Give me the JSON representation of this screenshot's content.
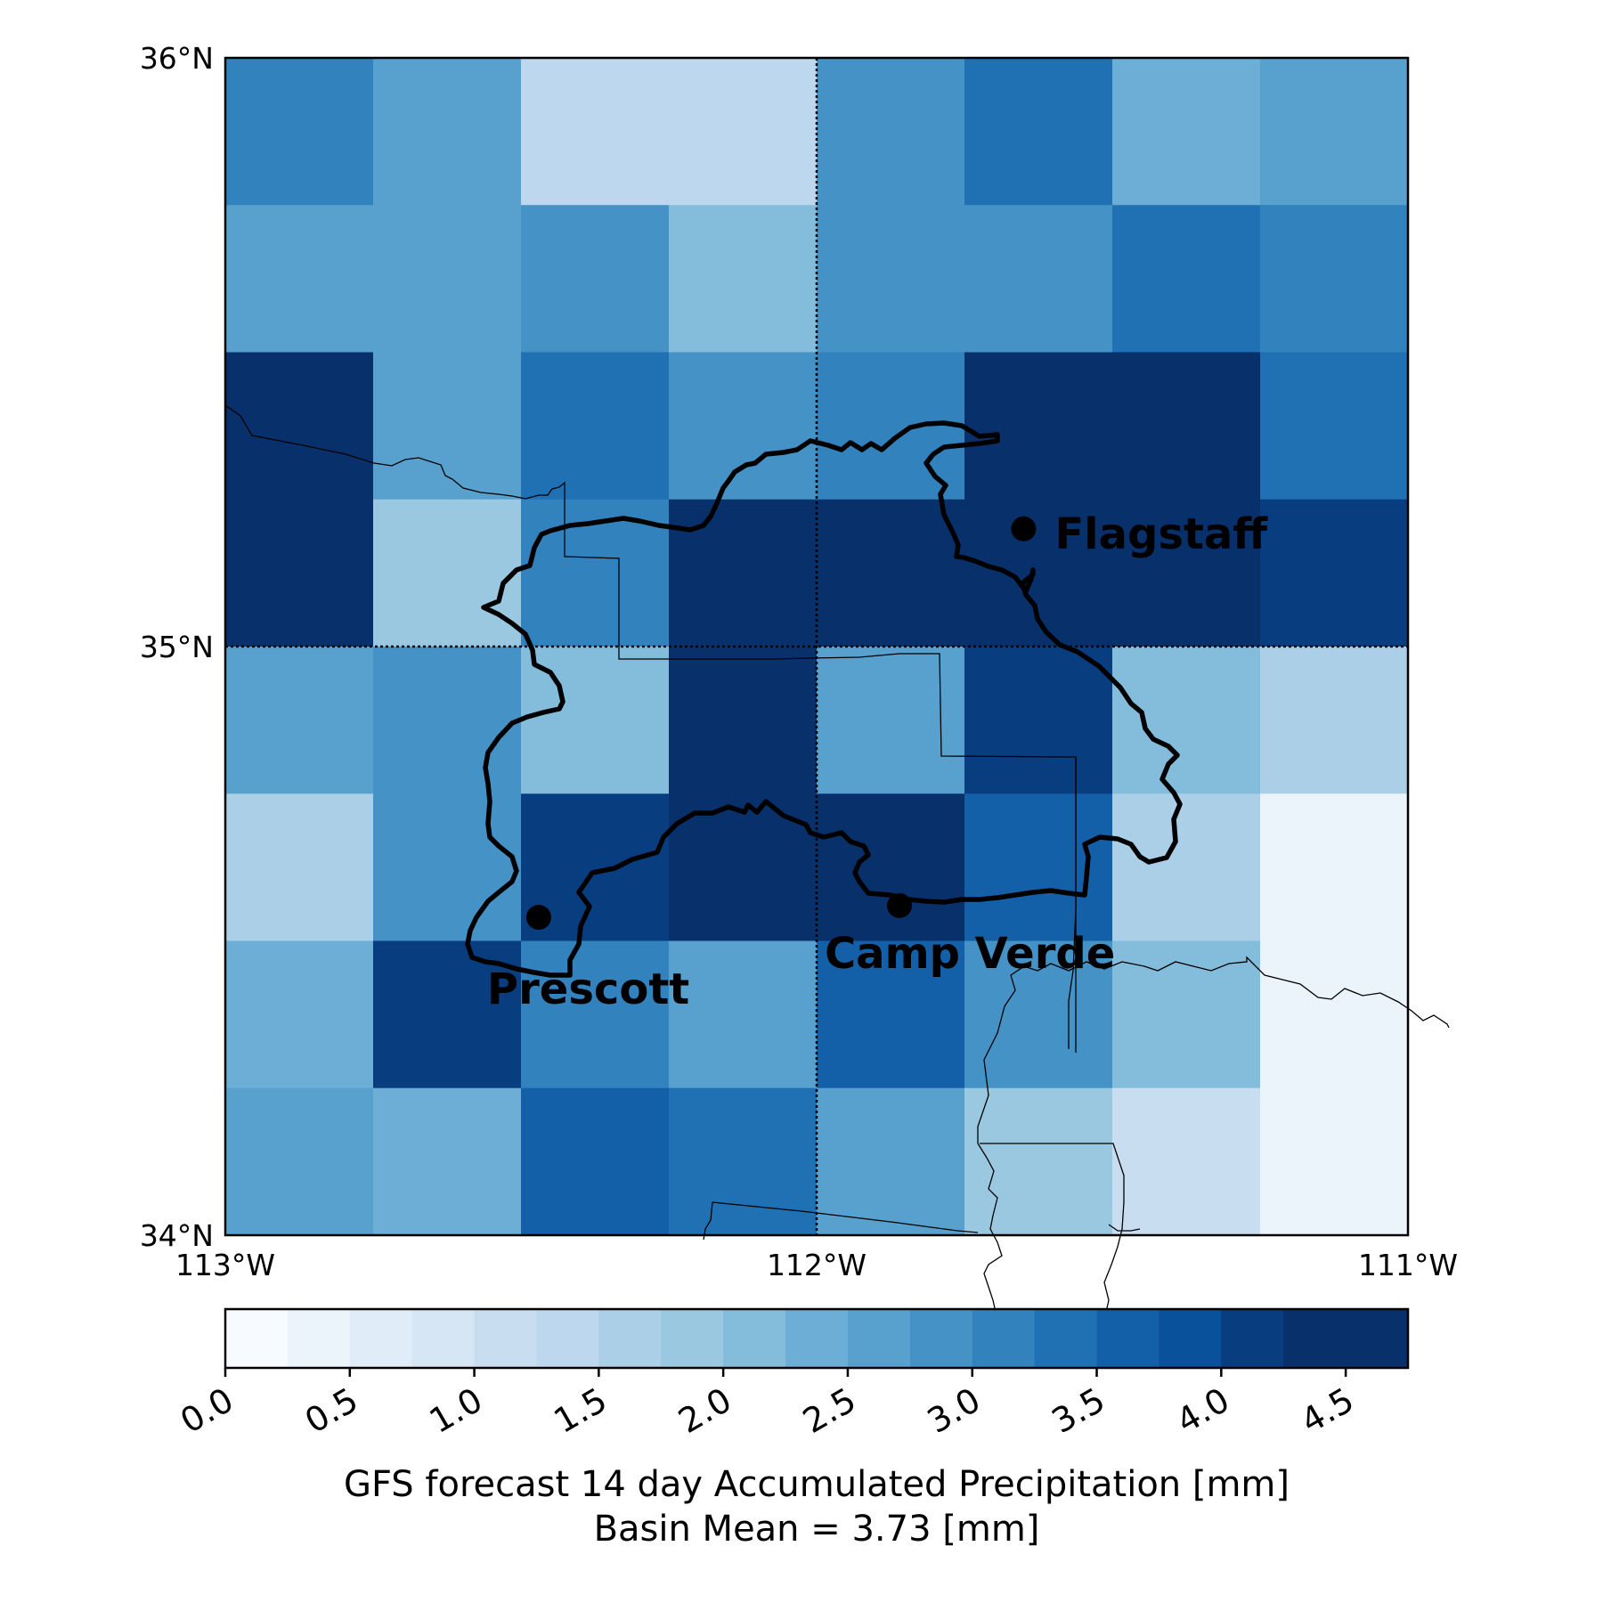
{
  "map": {
    "lon_range": [
      -113,
      -111
    ],
    "lat_range": [
      34,
      36
    ],
    "grid_spacing_deg": 0.25,
    "gridlines": {
      "lons": [
        -112
      ],
      "lats": [
        35
      ],
      "style": "dotted"
    },
    "lat_ticks": [
      {
        "value": 36,
        "label": "36°N"
      },
      {
        "value": 35,
        "label": "35°N"
      },
      {
        "value": 34,
        "label": "34°N"
      }
    ],
    "lon_ticks": [
      {
        "value": -113,
        "label": "113°W"
      },
      {
        "value": -112,
        "label": "112°W"
      },
      {
        "value": -111,
        "label": "111°W"
      }
    ],
    "precip_grid_mm_north_to_south": [
      [
        3.2,
        2.7,
        1.4,
        1.4,
        2.9,
        3.4,
        2.3,
        2.7
      ],
      [
        2.7,
        2.7,
        2.9,
        2.1,
        2.9,
        2.9,
        3.4,
        3.2
      ],
      [
        4.6,
        2.7,
        3.4,
        2.9,
        3.1,
        4.4,
        4.6,
        3.4
      ],
      [
        4.6,
        1.9,
        3.2,
        4.6,
        4.4,
        4.6,
        4.4,
        4.1
      ],
      [
        2.7,
        2.9,
        2.1,
        4.6,
        2.6,
        4.1,
        2.1,
        1.6
      ],
      [
        1.6,
        2.9,
        4.0,
        4.6,
        4.6,
        3.6,
        1.6,
        0.4
      ],
      [
        2.3,
        4.1,
        3.2,
        2.5,
        3.6,
        2.9,
        2.1,
        0.4
      ],
      [
        2.5,
        2.3,
        3.6,
        3.4,
        2.5,
        1.9,
        1.1,
        0.4
      ]
    ],
    "cities": [
      {
        "name": "Flagstaff",
        "lon": -111.65,
        "lat": 35.2
      },
      {
        "name": "Prescott",
        "lon": -112.47,
        "lat": 34.54
      },
      {
        "name": "Camp Verde",
        "lon": -111.86,
        "lat": 34.56
      }
    ]
  },
  "colorbar": {
    "range": [
      0.0,
      4.75
    ],
    "steps": 19,
    "colors": [
      "#f7fbff",
      "#ebf3fb",
      "#e0ecf8",
      "#d6e6f4",
      "#c9ddf0",
      "#bdd7ee",
      "#abcfe6",
      "#9ac8e1",
      "#84bcdc",
      "#6caed6",
      "#58a1cf",
      "#4592c6",
      "#3282be",
      "#2070b4",
      "#1460a8",
      "#0a519b",
      "#083d7f",
      "#08306b",
      "#08306b"
    ],
    "ticks": [
      "0.0",
      "0.5",
      "1.0",
      "1.5",
      "2.0",
      "2.5",
      "3.0",
      "3.5",
      "4.0",
      "4.5"
    ]
  },
  "caption": {
    "line1": "GFS forecast 14 day Accumulated Precipitation [mm]",
    "line2": "Basin Mean = 3.73 [mm]"
  }
}
